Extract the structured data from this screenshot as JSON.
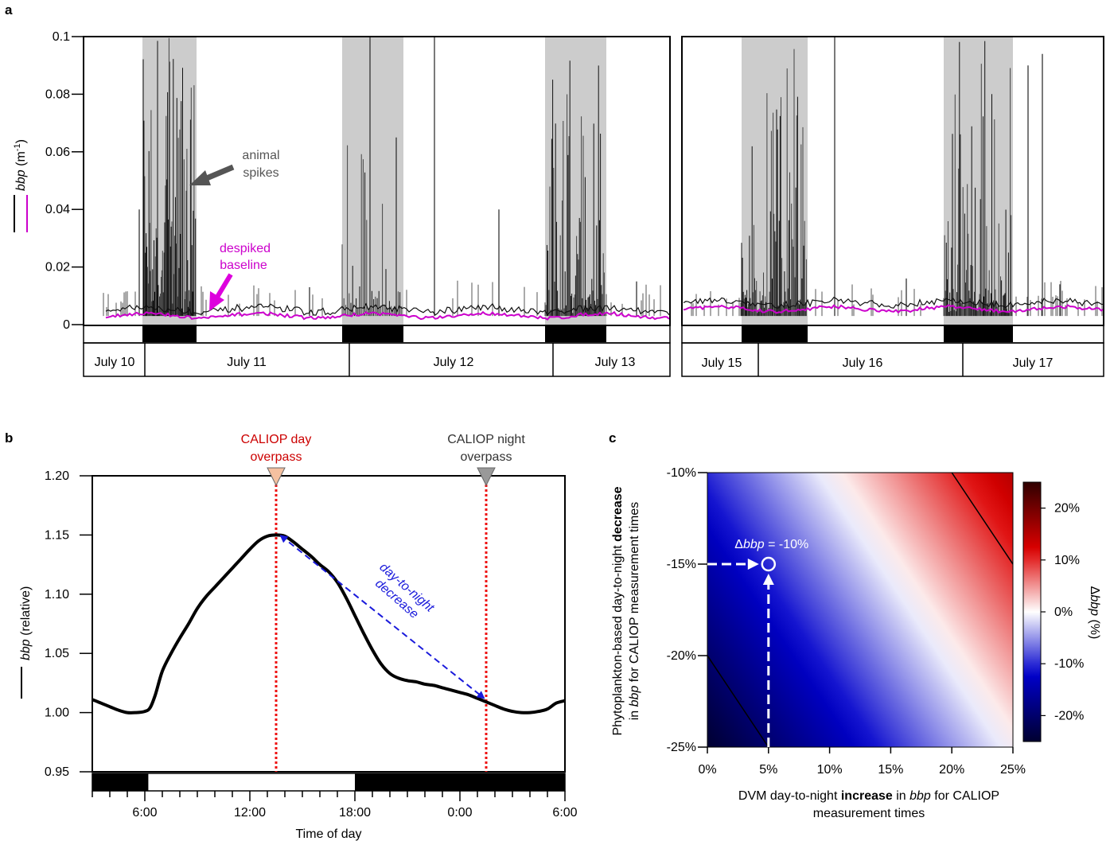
{
  "panel_letters": {
    "a": "a",
    "b": "b",
    "c": "c"
  },
  "chart_data": [
    {
      "id": "a",
      "type": "line",
      "ylabel": "bbp (m⁻¹)",
      "ylabel_parts": {
        "italic": "bbp",
        "unit": " (m",
        "exp": "-1",
        "close": ")"
      },
      "ylim": [
        0,
        0.1
      ],
      "yticks": [
        "0",
        "0.02",
        "0.04",
        "0.06",
        "0.08",
        "0.1"
      ],
      "ytick_values": [
        0,
        0.02,
        0.04,
        0.06,
        0.08,
        0.1
      ],
      "days_left": [
        "July 10",
        "July 11",
        "July 12",
        "July 13"
      ],
      "days_right": [
        "July 15",
        "July 16",
        "July 17"
      ],
      "series": [
        {
          "name": "bbp",
          "color": "#000000"
        },
        {
          "name": "despiked baseline",
          "color": "#cc00cc"
        }
      ],
      "annotations": {
        "animal_spikes": [
          "animal",
          "spikes"
        ],
        "despiked_baseline": [
          "despiked",
          "baseline"
        ]
      },
      "colors": {
        "night_shade": "#cccccc",
        "baseline": "#cc00cc",
        "arrow_gray": "#555555",
        "arrow_magenta": "#dd00dd"
      }
    },
    {
      "id": "b",
      "type": "line",
      "xlabel": "Time of day",
      "ylabel": "bbp (relative)",
      "ylabel_parts": {
        "italic": "bbp",
        "rest": " (relative)"
      },
      "ylim": [
        0.95,
        1.2
      ],
      "yticks": [
        "0.95",
        "1.00",
        "1.05",
        "1.10",
        "1.15",
        "1.20"
      ],
      "ytick_values": [
        0.95,
        1.0,
        1.05,
        1.1,
        1.15,
        1.2
      ],
      "xlim": [
        3,
        30
      ],
      "xticks": [
        "6:00",
        "12:00",
        "18:00",
        "0:00",
        "6:00"
      ],
      "xtick_values": [
        6,
        12,
        18,
        24,
        30
      ],
      "series": [
        {
          "x": [
            3,
            3.5,
            4,
            4.5,
            5,
            5.5,
            6,
            6.3,
            6.6,
            7,
            7.5,
            8,
            8.5,
            9,
            9.5,
            10,
            10.5,
            11,
            11.5,
            12,
            12.5,
            13,
            13.5,
            14,
            14.5,
            15,
            15.5,
            16,
            16.5,
            17,
            17.5,
            18,
            18.5,
            19,
            19.5,
            20,
            20.5,
            21,
            21.5,
            22,
            22.5,
            23,
            23.5,
            24,
            24.5,
            25,
            25.5,
            26,
            26.5,
            27,
            27.5,
            28,
            28.5,
            29,
            29.5,
            30
          ],
          "y": [
            1.011,
            1.008,
            1.005,
            1.002,
            1.0,
            1.0,
            1.001,
            1.004,
            1.015,
            1.035,
            1.05,
            1.063,
            1.075,
            1.088,
            1.098,
            1.106,
            1.114,
            1.122,
            1.13,
            1.138,
            1.145,
            1.149,
            1.15,
            1.149,
            1.144,
            1.138,
            1.132,
            1.125,
            1.119,
            1.11,
            1.097,
            1.082,
            1.067,
            1.053,
            1.041,
            1.033,
            1.029,
            1.027,
            1.026,
            1.024,
            1.023,
            1.021,
            1.019,
            1.017,
            1.015,
            1.012,
            1.009,
            1.006,
            1.003,
            1.001,
            1.0,
            1.0,
            1.001,
            1.003,
            1.008,
            1.01
          ],
          "color": "#000000"
        }
      ],
      "night_bars": [
        [
          3,
          6.2
        ],
        [
          18,
          30
        ]
      ],
      "overpass_day": {
        "x": 13.5,
        "label": [
          "CALIOP day",
          "overpass"
        ],
        "color": "#cc0000",
        "marker_color": "#f5c0a0"
      },
      "overpass_night": {
        "x": 25.5,
        "label": [
          "CALIOP night",
          "overpass"
        ],
        "color": "#333333",
        "marker_color": "#999999"
      },
      "arrow_label": [
        "day-to-night",
        "decrease"
      ],
      "arrow_color": "#1a1adb",
      "vline_color": "#ee1111"
    },
    {
      "id": "c",
      "type": "heatmap",
      "xlabel_parts": [
        "DVM day-to-night ",
        "increase",
        " in ",
        "bbp",
        " for CALIOP"
      ],
      "xlabel_line2": "measurement times",
      "ylabel_line1_parts": [
        "Phytoplankton-based day-to-night ",
        "decrease"
      ],
      "ylabel_line2_parts": [
        "in ",
        "bbp",
        "  for CALIOP measurement times"
      ],
      "xlim": [
        0,
        25
      ],
      "ylim": [
        -25,
        -10
      ],
      "xticks": [
        "0%",
        "5%",
        "10%",
        "15%",
        "20%",
        "25%"
      ],
      "xtick_values": [
        0,
        5,
        10,
        15,
        20,
        25
      ],
      "yticks": [
        "-10%",
        "-15%",
        "-20%",
        "-25%"
      ],
      "ytick_values": [
        -10,
        -15,
        -20,
        -25
      ],
      "value_formula": "delta_bbp = x + y",
      "contours": [
        -20,
        10
      ],
      "colorbar": {
        "label_parts": [
          "Δ",
          "bbp",
          " (%)"
        ],
        "range": [
          -25,
          25
        ],
        "ticks": [
          "20%",
          "10%",
          "0%",
          "-10%",
          "-20%"
        ],
        "tick_values": [
          20,
          10,
          0,
          -10,
          -20
        ]
      },
      "highlight": {
        "x": 5,
        "y": -15,
        "label_parts": [
          "Δ",
          "bbp",
          " = -10%"
        ]
      },
      "colors": {
        "neg_end": "#000030",
        "neg_mid": "#0000cc",
        "zero": "#ffffff",
        "pos_mid": "#dd0000",
        "pos_end": "#300000"
      }
    }
  ]
}
